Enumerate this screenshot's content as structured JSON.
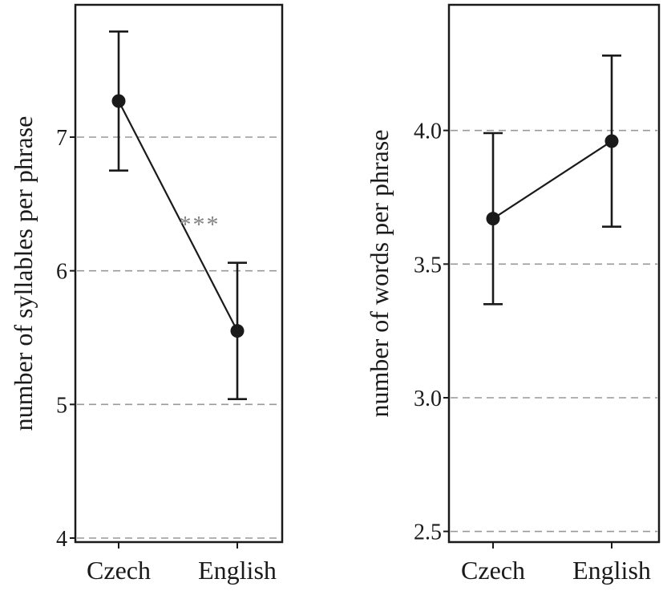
{
  "chart_data": [
    {
      "type": "line",
      "ylabel": "number of syllables per phrase",
      "categories": [
        "Czech",
        "English"
      ],
      "values": [
        7.27,
        5.55
      ],
      "err_low": [
        6.75,
        5.04
      ],
      "err_high": [
        7.79,
        6.06
      ],
      "ylim": [
        3.97,
        7.99
      ],
      "yticks": [
        4,
        5,
        6,
        7
      ],
      "ytick_labels": [
        "4",
        "5",
        "6",
        "7"
      ],
      "grid": "dashed-horizontal",
      "annotation": "***"
    },
    {
      "type": "line",
      "ylabel": "number of words per phrase",
      "categories": [
        "Czech",
        "English"
      ],
      "values": [
        3.67,
        3.96
      ],
      "err_low": [
        3.35,
        3.64
      ],
      "err_high": [
        3.99,
        4.28
      ],
      "ylim": [
        2.46,
        4.47
      ],
      "yticks": [
        2.5,
        3.0,
        3.5,
        4.0
      ],
      "ytick_labels": [
        "2.5",
        "3.0",
        "3.5",
        "4.0"
      ],
      "grid": "dashed-horizontal",
      "annotation": ""
    }
  ]
}
